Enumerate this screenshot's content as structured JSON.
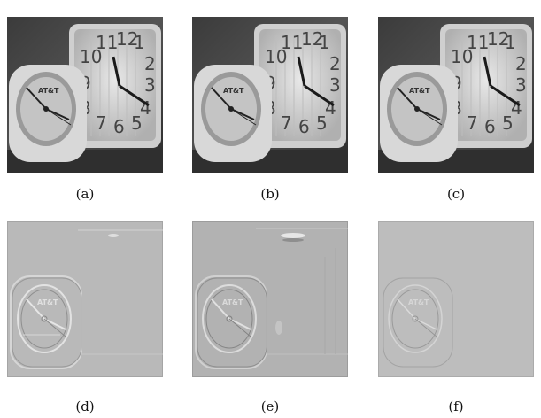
{
  "figure": {
    "captions": {
      "a": "(a)",
      "b": "(b)",
      "c": "(c)",
      "d": "(d)",
      "e": "(e)",
      "f": "(f)"
    },
    "clock_face_numbers": [
      "10",
      "11",
      "12",
      "1",
      "2",
      "3",
      "4",
      "5",
      "6",
      "7",
      "8",
      "9"
    ],
    "small_clock_brand": "AT&T",
    "colors": {
      "photo_background": "#4a4a4a",
      "residual_background": "#b9b9b9"
    }
  }
}
